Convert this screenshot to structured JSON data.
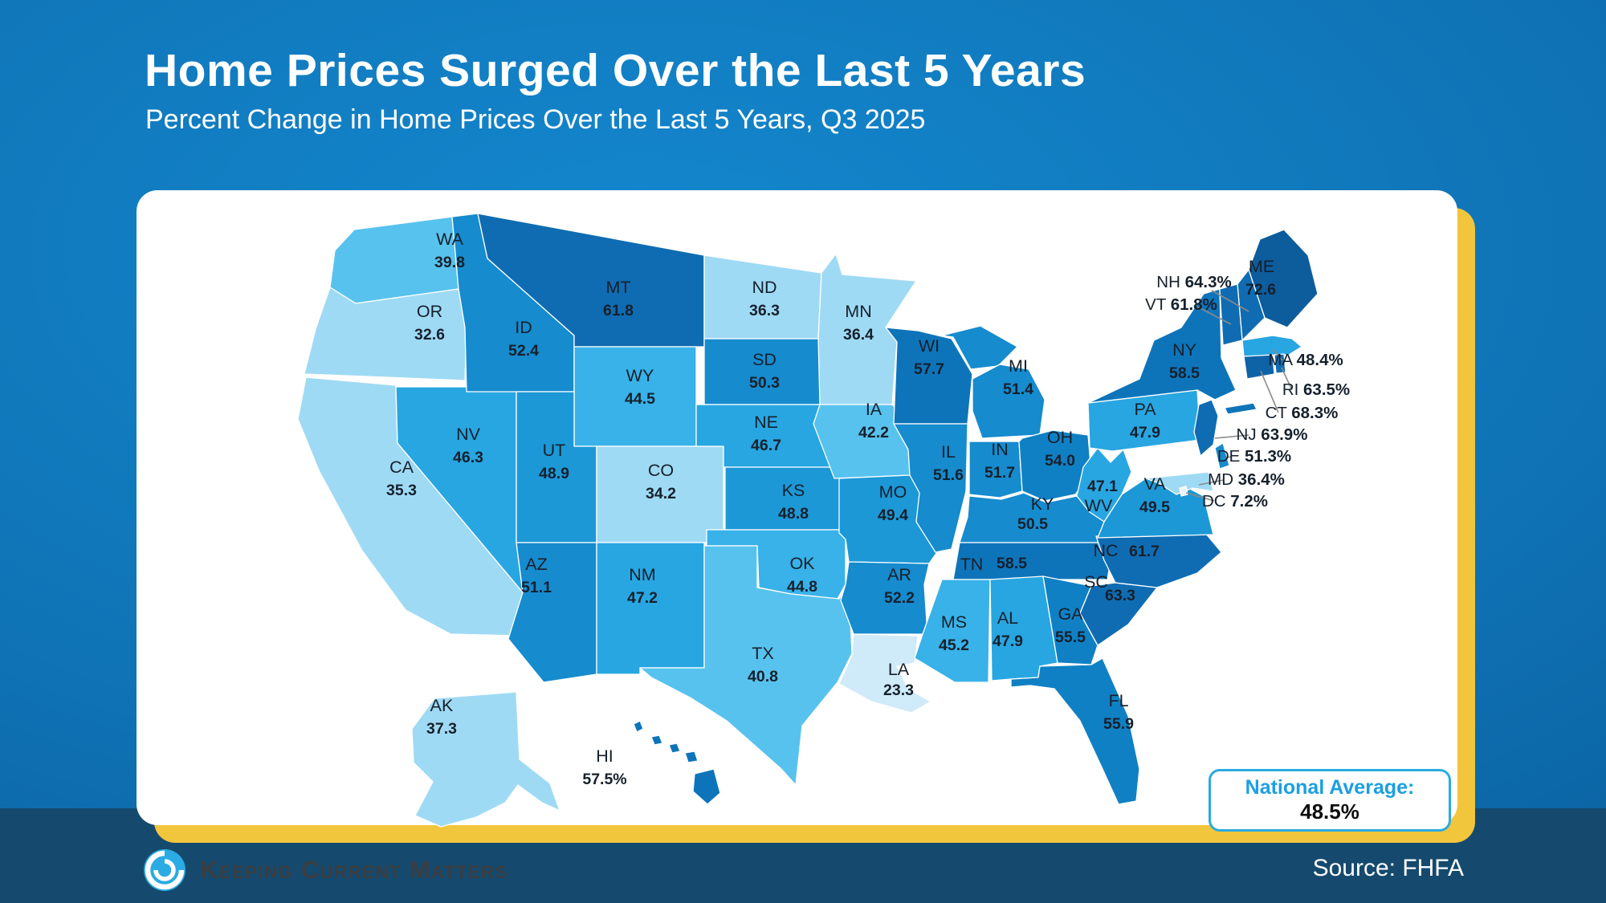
{
  "header": {
    "title": "Home Prices Surged Over the Last 5 Years",
    "subtitle": "Percent Change in Home Prices Over the Last 5 Years, Q3 2025"
  },
  "national_average": {
    "label": "National Average:",
    "value": "48.5%"
  },
  "footer": {
    "brand": "Keeping Current Matters",
    "source": "Source: FHFA"
  },
  "colors": {
    "background_top": "#1487ce",
    "background_deep": "#0a5c9a",
    "card": "#ffffff",
    "accent_gold": "#f1c53c",
    "footer_navy": "#154a6e",
    "title_text": "#ffffff",
    "state_label_text": "#15202c",
    "natavg_accent": "#29abe2",
    "natavg_label_text": "#1b9fe3",
    "leader_line": "#8a8a8a",
    "brand_text": "#3b3d40",
    "logo_blue": "#2aabe3",
    "scale": [
      {
        "max": 10,
        "color": "#eaf6fd"
      },
      {
        "max": 26,
        "color": "#cfeaf9"
      },
      {
        "max": 38,
        "color": "#9fdaf5"
      },
      {
        "max": 43,
        "color": "#58c2ee"
      },
      {
        "max": 46,
        "color": "#38b2e8"
      },
      {
        "max": 48.5,
        "color": "#28a6e1"
      },
      {
        "max": 50,
        "color": "#1c98d7"
      },
      {
        "max": 53,
        "color": "#168bce"
      },
      {
        "max": 56.5,
        "color": "#1080c4"
      },
      {
        "max": 59.5,
        "color": "#0e74ba"
      },
      {
        "max": 65,
        "color": "#0f6cb2"
      },
      {
        "max": 70,
        "color": "#0e63a6"
      },
      {
        "max": 200,
        "color": "#0d5c9c"
      }
    ]
  },
  "chart_data": {
    "type": "choropleth_map",
    "region": "United States",
    "title": "Percent Change in Home Prices Over the Last 5 Years, Q3 2025",
    "unit": "percent",
    "source": "FHFA",
    "national_average": 48.5,
    "states": [
      {
        "code": "WA",
        "value": 39.8,
        "display": "39.8"
      },
      {
        "code": "OR",
        "value": 32.6,
        "display": "32.6"
      },
      {
        "code": "CA",
        "value": 35.3,
        "display": "35.3"
      },
      {
        "code": "NV",
        "value": 46.3,
        "display": "46.3"
      },
      {
        "code": "ID",
        "value": 52.4,
        "display": "52.4"
      },
      {
        "code": "MT",
        "value": 61.8,
        "display": "61.8"
      },
      {
        "code": "WY",
        "value": 44.5,
        "display": "44.5"
      },
      {
        "code": "UT",
        "value": 48.9,
        "display": "48.9"
      },
      {
        "code": "CO",
        "value": 34.2,
        "display": "34.2"
      },
      {
        "code": "AZ",
        "value": 51.1,
        "display": "51.1"
      },
      {
        "code": "NM",
        "value": 47.2,
        "display": "47.2"
      },
      {
        "code": "ND",
        "value": 36.3,
        "display": "36.3"
      },
      {
        "code": "SD",
        "value": 50.3,
        "display": "50.3"
      },
      {
        "code": "NE",
        "value": 46.7,
        "display": "46.7"
      },
      {
        "code": "KS",
        "value": 48.8,
        "display": "48.8"
      },
      {
        "code": "OK",
        "value": 44.8,
        "display": "44.8"
      },
      {
        "code": "TX",
        "value": 40.8,
        "display": "40.8"
      },
      {
        "code": "MN",
        "value": 36.4,
        "display": "36.4"
      },
      {
        "code": "IA",
        "value": 42.2,
        "display": "42.2"
      },
      {
        "code": "MO",
        "value": 49.4,
        "display": "49.4"
      },
      {
        "code": "AR",
        "value": 52.2,
        "display": "52.2"
      },
      {
        "code": "LA",
        "value": 23.3,
        "display": "23.3"
      },
      {
        "code": "WI",
        "value": 57.7,
        "display": "57.7"
      },
      {
        "code": "IL",
        "value": 51.6,
        "display": "51.6"
      },
      {
        "code": "MI",
        "value": 51.4,
        "display": "51.4"
      },
      {
        "code": "IN",
        "value": 51.7,
        "display": "51.7"
      },
      {
        "code": "OH",
        "value": 54.0,
        "display": "54.0"
      },
      {
        "code": "KY",
        "value": 50.5,
        "display": "50.5"
      },
      {
        "code": "TN",
        "value": 58.5,
        "display": "58.5"
      },
      {
        "code": "MS",
        "value": 45.2,
        "display": "45.2"
      },
      {
        "code": "AL",
        "value": 47.9,
        "display": "47.9"
      },
      {
        "code": "GA",
        "value": 55.5,
        "display": "55.5"
      },
      {
        "code": "FL",
        "value": 55.9,
        "display": "55.9"
      },
      {
        "code": "SC",
        "value": 63.3,
        "display": "63.3"
      },
      {
        "code": "NC",
        "value": 61.7,
        "display": "61.7"
      },
      {
        "code": "VA",
        "value": 49.5,
        "display": "49.5"
      },
      {
        "code": "WV",
        "value": 47.1,
        "display": "47.1"
      },
      {
        "code": "PA",
        "value": 47.9,
        "display": "47.9"
      },
      {
        "code": "NY",
        "value": 58.5,
        "display": "58.5"
      },
      {
        "code": "ME",
        "value": 72.6,
        "display": "72.6"
      },
      {
        "code": "AK",
        "value": 37.3,
        "display": "37.3"
      },
      {
        "code": "HI",
        "value": 57.5,
        "display": "57.5%"
      },
      {
        "code": "NH",
        "value": 64.3,
        "display": "64.3%",
        "callout": true
      },
      {
        "code": "VT",
        "value": 61.8,
        "display": "61.8%",
        "callout": true
      },
      {
        "code": "MA",
        "value": 48.4,
        "display": "48.4%",
        "callout": true
      },
      {
        "code": "RI",
        "value": 63.5,
        "display": "63.5%",
        "callout": true
      },
      {
        "code": "CT",
        "value": 68.3,
        "display": "68.3%",
        "callout": true
      },
      {
        "code": "NJ",
        "value": 63.9,
        "display": "63.9%",
        "callout": true
      },
      {
        "code": "DE",
        "value": 51.3,
        "display": "51.3%",
        "callout": true
      },
      {
        "code": "MD",
        "value": 36.4,
        "display": "36.4%",
        "callout": true
      },
      {
        "code": "DC",
        "value": 7.2,
        "display": "7.2%",
        "callout": true
      }
    ]
  }
}
